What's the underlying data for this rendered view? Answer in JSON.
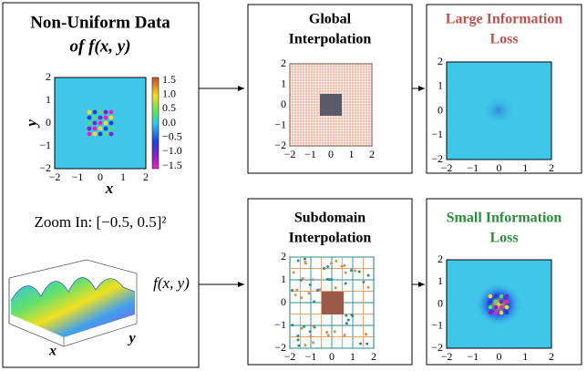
{
  "input": {
    "title_line1": "Non-Uniform Data",
    "title_line2": "of f(x, y)",
    "xticks": [
      "−2",
      "−1",
      "0",
      "1",
      "2"
    ],
    "yticks": [
      "−2",
      "−1",
      "0",
      "1",
      "2"
    ],
    "xlabel": "x",
    "ylabel": "y",
    "colorbar_ticks": [
      "1.5",
      "1.0",
      "0.5",
      "0.0",
      "−0.5",
      "−1.0",
      "−1.5"
    ],
    "zoom_label": "Zoom In: [−0.5, 0.5]²",
    "surface_xlabel": "x",
    "surface_ylabel": "y",
    "function_label": "f(x, y)"
  },
  "global": {
    "title_line1": "Global",
    "title_line2": "Interpolation",
    "xticks": [
      "−2",
      "−1",
      "0",
      "1",
      "2"
    ],
    "yticks": [
      "−2",
      "−1",
      "0",
      "1",
      "2"
    ]
  },
  "global_result": {
    "title_line1": "Large Information",
    "title_line2": "Loss",
    "xticks": [
      "−2",
      "−1",
      "0",
      "1",
      "2"
    ],
    "yticks": [
      "−2",
      "−1",
      "0",
      "1",
      "2"
    ]
  },
  "subdomain": {
    "title_line1": "Subdomain",
    "title_line2": "Interpolation",
    "xticks": [
      "−2",
      "−1",
      "0",
      "1",
      "2"
    ],
    "yticks": [
      "−2",
      "−1",
      "0",
      "1",
      "2"
    ]
  },
  "subdomain_result": {
    "title_line1": "Small Information",
    "title_line2": "Loss",
    "xticks": [
      "−2",
      "−1",
      "0",
      "1",
      "2"
    ],
    "yticks": [
      "−2",
      "−1",
      "0",
      "1",
      "2"
    ]
  }
}
